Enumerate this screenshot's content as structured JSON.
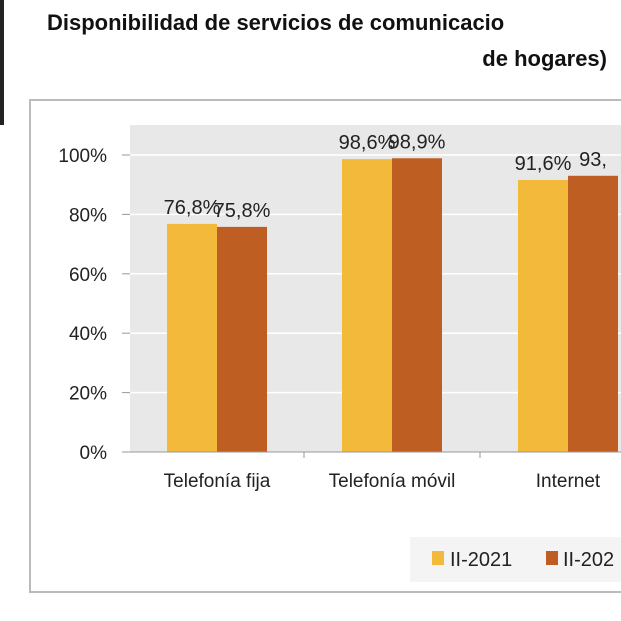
{
  "chart_data": {
    "type": "bar",
    "title": [
      "Disponibilidad de servicios de comunicacio",
      "de hogares)"
    ],
    "categories": [
      "Telefonía fija",
      "Telefonía móvil",
      "Internet"
    ],
    "series": [
      {
        "name": "II-2021",
        "color": "#F2B93B",
        "values": [
          76.8,
          98.6,
          91.6
        ],
        "labels": [
          "76,8%",
          "98,6%",
          "91,6%"
        ]
      },
      {
        "name": "II-202",
        "color": "#BE5E23",
        "values": [
          75.8,
          98.9,
          93.0
        ],
        "labels": [
          "75,8%",
          "98,9%",
          "93,"
        ]
      }
    ],
    "yticks": [
      "0%",
      "20%",
      "40%",
      "60%",
      "80%",
      "100%"
    ],
    "ylim": [
      0,
      100
    ],
    "grid": true,
    "legend": "bottom"
  }
}
